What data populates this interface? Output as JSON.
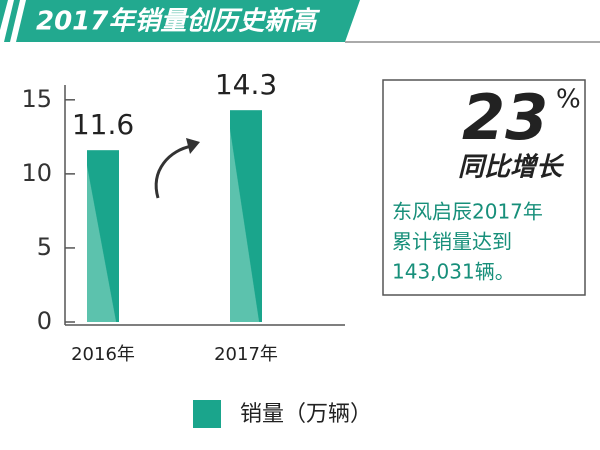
{
  "chart_data": {
    "type": "bar",
    "title": "2017年销量创历史新高",
    "categories": [
      "2016年",
      "2017年"
    ],
    "series": [
      {
        "name": "销量（万辆）",
        "color": "#1aa58c",
        "values": [
          11.6,
          14.3
        ]
      }
    ],
    "ylim": [
      0,
      16
    ],
    "yticks": [
      0,
      5,
      10,
      15
    ],
    "annotations": {
      "growth": "23",
      "growth_unit": "%",
      "growth_label": "同比增长",
      "note_lines": [
        "东风启辰2017年",
        "累计销量达到",
        "143,031辆。"
      ]
    }
  }
}
